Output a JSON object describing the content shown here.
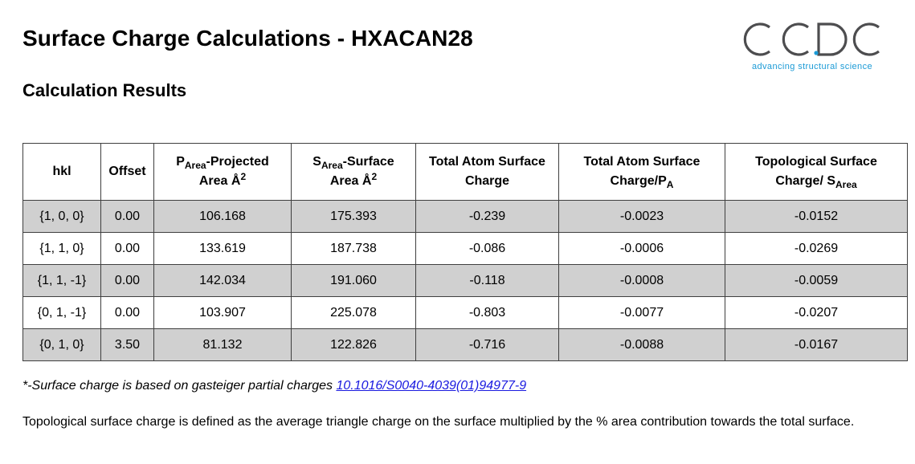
{
  "page": {
    "title": "Surface Charge Calculations - HXACAN28",
    "subtitle": "Calculation Results"
  },
  "logo": {
    "wordmark": "CCDC",
    "tagline": "advancing structural science",
    "color": "#4d4d4f",
    "accent": "#1a9ad6"
  },
  "table": {
    "headers": {
      "hkl": "hkl",
      "offset": "Offset",
      "projected_area_symbol": "P",
      "projected_area_sub": "Area",
      "projected_area_label": "-Projected",
      "projected_area_unit": "Area Å",
      "projected_area_sup": "2",
      "surface_area_symbol": "S",
      "surface_area_sub": "Area",
      "surface_area_label": "-Surface",
      "surface_area_unit": "Area Å",
      "surface_area_sup": "2",
      "total_charge": "Total Atom Surface Charge",
      "charge_per_pa_label": "Total Atom Surface Charge/P",
      "charge_per_pa_sub": "A",
      "topological_label_1": "Topological Surface",
      "topological_label_2": "Charge/ S",
      "topological_sub": "Area"
    },
    "rows": [
      {
        "hkl": "{1, 0, 0}",
        "offset": "0.00",
        "projected_area": "106.168",
        "surface_area": "175.393",
        "total_charge": "-0.239",
        "charge_per_pa": "-0.0023",
        "topological_charge": "-0.0152",
        "shaded": true
      },
      {
        "hkl": "{1, 1, 0}",
        "offset": "0.00",
        "projected_area": "133.619",
        "surface_area": "187.738",
        "total_charge": "-0.086",
        "charge_per_pa": "-0.0006",
        "topological_charge": "-0.0269",
        "shaded": false
      },
      {
        "hkl": "{1, 1, -1}",
        "offset": "0.00",
        "projected_area": "142.034",
        "surface_area": "191.060",
        "total_charge": "-0.118",
        "charge_per_pa": "-0.0008",
        "topological_charge": "-0.0059",
        "shaded": true
      },
      {
        "hkl": "{0, 1, -1}",
        "offset": "0.00",
        "projected_area": "103.907",
        "surface_area": "225.078",
        "total_charge": "-0.803",
        "charge_per_pa": "-0.0077",
        "topological_charge": "-0.0207",
        "shaded": false
      },
      {
        "hkl": "{0, 1, 0}",
        "offset": "3.50",
        "projected_area": "81.132",
        "surface_area": "122.826",
        "total_charge": "-0.716",
        "charge_per_pa": "-0.0088",
        "topological_charge": "-0.0167",
        "shaded": true
      }
    ]
  },
  "footnote": {
    "text": "*-Surface charge is based on gasteiger partial charges ",
    "link_text": "10.1016/S0040-4039(01)94977-9"
  },
  "definition": "Topological surface charge is defined as the average triangle charge on the surface multiplied by the % area contribution towards the total surface."
}
